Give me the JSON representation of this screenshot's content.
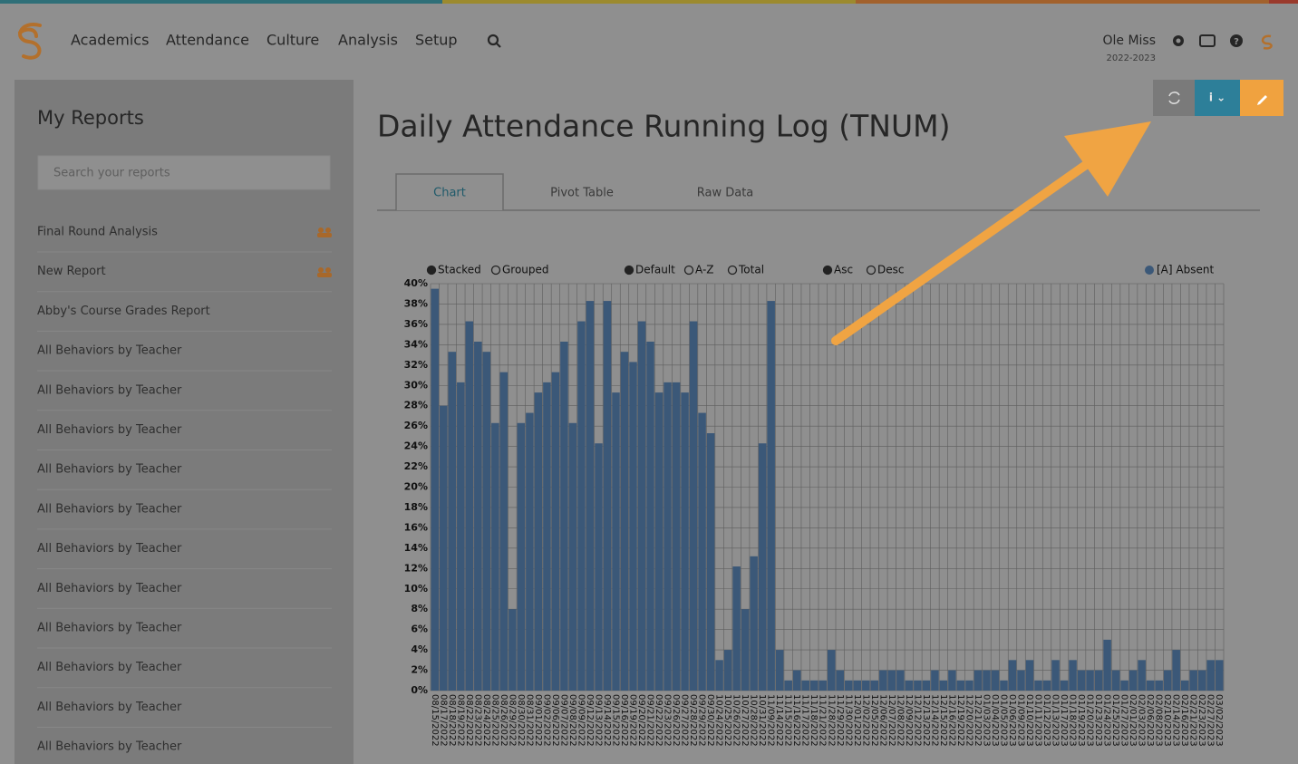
{
  "nav": {
    "items": [
      "Academics",
      "Attendance",
      "Culture",
      "Analysis",
      "Setup"
    ],
    "school": "Ole Miss",
    "year": "2022-2023"
  },
  "sidebar": {
    "title": "My Reports",
    "search_placeholder": "Search your reports",
    "items": [
      "Final Round Analysis",
      "New Report",
      "Abby's Course Grades Report",
      "All Behaviors by Teacher",
      "All Behaviors by Teacher",
      "All Behaviors by Teacher",
      "All Behaviors by Teacher",
      "All Behaviors by Teacher",
      "All Behaviors by Teacher",
      "All Behaviors by Teacher",
      "All Behaviors by Teacher",
      "All Behaviors by Teacher",
      "All Behaviors by Teacher",
      "All Behaviors by Teacher"
    ]
  },
  "report": {
    "title": "Daily Attendance Running Log (TNUM)",
    "tabs": [
      "Chart",
      "Pivot Table",
      "Raw Data"
    ]
  },
  "chart_data": {
    "type": "bar",
    "options": [
      {
        "label": "Stacked",
        "selected": true
      },
      {
        "label": "Grouped",
        "selected": false
      },
      {
        "label": "Default",
        "selected": true
      },
      {
        "label": "A-Z",
        "selected": false
      },
      {
        "label": "Total",
        "selected": false
      },
      {
        "label": "Asc",
        "selected": true
      },
      {
        "label": "Desc",
        "selected": false
      }
    ],
    "categories": [
      "08/15/2022",
      "08/17/2022",
      "08/18/2022",
      "08/19/2022",
      "08/22/2022",
      "08/23/2022",
      "08/24/2022",
      "08/25/2022",
      "08/26/2022",
      "08/29/2022",
      "08/30/2022",
      "08/31/2022",
      "09/01/2022",
      "09/02/2022",
      "09/06/2022",
      "09/07/2022",
      "09/08/2022",
      "09/09/2022",
      "09/12/2022",
      "09/13/2022",
      "09/14/2022",
      "09/15/2022",
      "09/16/2022",
      "09/19/2022",
      "09/20/2022",
      "09/21/2022",
      "09/22/2022",
      "09/23/2022",
      "09/26/2022",
      "09/27/2022",
      "09/28/2022",
      "09/29/2022",
      "09/30/2022",
      "10/24/2022",
      "10/25/2022",
      "10/26/2022",
      "10/27/2022",
      "10/28/2022",
      "10/31/2022",
      "11/09/2022",
      "11/14/2022",
      "11/15/2022",
      "11/16/2022",
      "11/17/2022",
      "11/18/2022",
      "11/21/2022",
      "11/28/2022",
      "11/29/2022",
      "11/30/2022",
      "12/01/2022",
      "12/02/2022",
      "12/05/2022",
      "12/06/2022",
      "12/07/2022",
      "12/08/2022",
      "12/09/2022",
      "12/12/2022",
      "12/13/2022",
      "12/14/2022",
      "12/15/2022",
      "12/16/2022",
      "12/19/2022",
      "12/20/2022",
      "12/21/2022",
      "01/03/2023",
      "01/04/2023",
      "01/05/2023",
      "01/06/2023",
      "01/09/2023",
      "01/10/2023",
      "01/11/2023",
      "01/12/2023",
      "01/13/2023",
      "01/17/2023",
      "01/18/2023",
      "01/19/2023",
      "01/20/2023",
      "01/23/2023",
      "01/24/2023",
      "01/25/2023",
      "01/27/2023",
      "02/01/2023",
      "02/03/2023",
      "02/06/2023",
      "02/08/2023",
      "02/10/2023",
      "02/14/2023",
      "02/16/2023",
      "02/21/2023",
      "02/23/2023",
      "02/27/2023",
      "03/02/2023"
    ],
    "series": [
      {
        "name": "[A] Absent",
        "color": "#3b5878",
        "values": [
          39.5,
          28,
          33.3,
          30.3,
          36.3,
          34.3,
          33.3,
          26.3,
          31.3,
          8,
          26.3,
          27.3,
          29.3,
          30.3,
          31.3,
          34.3,
          26.3,
          36.3,
          38.3,
          24.3,
          38.3,
          29.3,
          33.3,
          32.3,
          36.3,
          34.3,
          29.3,
          30.3,
          30.3,
          29.3,
          36.3,
          27.3,
          25.3,
          3,
          4,
          12.2,
          8,
          13.2,
          24.3,
          38.3,
          4,
          1,
          2,
          1,
          1,
          1,
          4,
          2,
          1,
          1,
          1,
          1,
          2,
          2,
          2,
          1,
          1,
          1,
          2,
          1,
          2,
          1,
          1,
          2,
          2,
          2,
          1,
          3,
          2,
          3,
          1,
          1,
          3,
          1,
          3,
          2,
          2,
          2,
          5,
          2,
          1,
          2,
          3,
          1,
          1,
          2,
          4,
          1,
          2,
          2,
          3,
          3
        ]
      }
    ],
    "ylim": [
      0,
      40
    ],
    "yticks": [
      {
        "value": 0,
        "label": "0%"
      },
      {
        "value": 2,
        "label": "2%"
      },
      {
        "value": 4,
        "label": "4%"
      },
      {
        "value": 6,
        "label": "6%"
      },
      {
        "value": 8,
        "label": "8%"
      },
      {
        "value": 10,
        "label": "10%"
      },
      {
        "value": 12,
        "label": "12%"
      },
      {
        "value": 14,
        "label": "14%"
      },
      {
        "value": 16,
        "label": "16%"
      },
      {
        "value": 18,
        "label": "18%"
      },
      {
        "value": 20,
        "label": "20%"
      },
      {
        "value": 22,
        "label": "22%"
      },
      {
        "value": 24,
        "label": "24%"
      },
      {
        "value": 26,
        "label": "26%"
      },
      {
        "value": 28,
        "label": "28%"
      },
      {
        "value": 30,
        "label": "30%"
      },
      {
        "value": 32,
        "label": "32%"
      },
      {
        "value": 34,
        "label": "34%"
      },
      {
        "value": 36,
        "label": "36%"
      },
      {
        "value": 38,
        "label": "38%"
      },
      {
        "value": 40,
        "label": "40%"
      }
    ],
    "grid": true
  }
}
